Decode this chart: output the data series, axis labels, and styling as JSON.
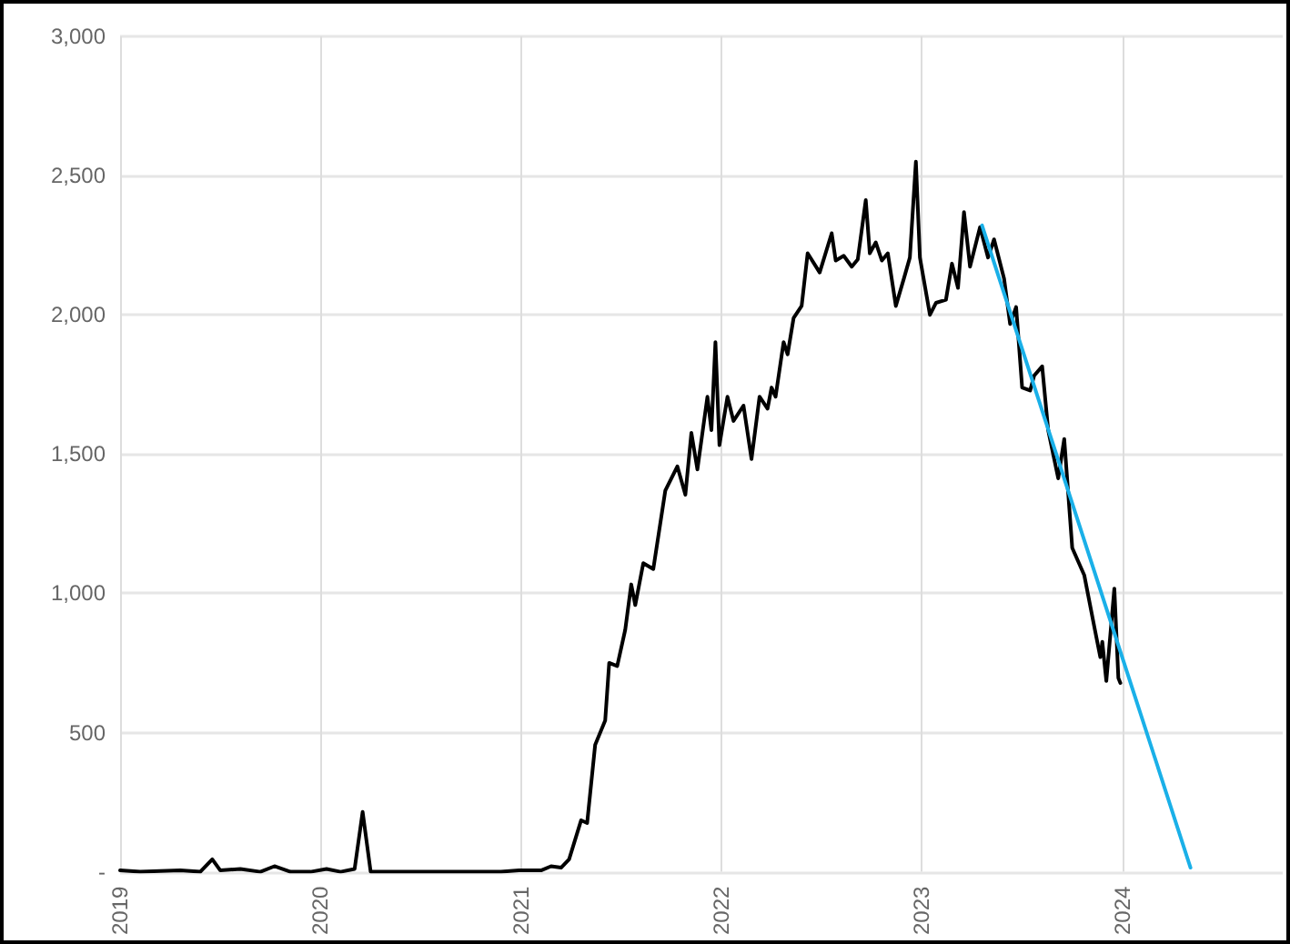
{
  "chart_data": {
    "type": "line",
    "xlim": [
      2019,
      2024.8
    ],
    "xticks": [
      2019,
      2020,
      2021,
      2022,
      2023,
      2024
    ],
    "ylim": [
      0,
      3000
    ],
    "yticks": [
      {
        "value": 0,
        "label": "-"
      },
      {
        "value": 500,
        "label": "500"
      },
      {
        "value": 1000,
        "label": "1,000"
      },
      {
        "value": 1500,
        "label": "1,500"
      },
      {
        "value": 2000,
        "label": "2,000"
      },
      {
        "value": 2500,
        "label": "2,500"
      },
      {
        "value": 3000,
        "label": "3,000"
      }
    ],
    "grid": true,
    "marker": "none",
    "line_style": "solid",
    "series": [
      {
        "color": "#000000",
        "x": [
          2019.0,
          2019.1,
          2019.3,
          2019.4,
          2019.46,
          2019.5,
          2019.6,
          2019.7,
          2019.77,
          2019.85,
          2019.95,
          2020.03,
          2020.1,
          2020.17,
          2020.21,
          2020.25,
          2020.9,
          2020.99,
          2021.1,
          2021.15,
          2021.2,
          2021.24,
          2021.3,
          2021.33,
          2021.37,
          2021.42,
          2021.44,
          2021.48,
          2021.52,
          2021.55,
          2021.57,
          2021.61,
          2021.66,
          2021.72,
          2021.78,
          2021.82,
          2021.85,
          2021.88,
          2021.93,
          2021.95,
          2021.97,
          2021.99,
          2022.03,
          2022.06,
          2022.11,
          2022.15,
          2022.19,
          2022.23,
          2022.25,
          2022.27,
          2022.31,
          2022.33,
          2022.36,
          2022.4,
          2022.43,
          2022.49,
          2022.55,
          2022.57,
          2022.61,
          2022.65,
          2022.68,
          2022.72,
          2022.74,
          2022.77,
          2022.8,
          2022.83,
          2022.87,
          2022.91,
          2022.94,
          2022.97,
          2022.99,
          2023.04,
          2023.07,
          2023.12,
          2023.15,
          2023.18,
          2023.21,
          2023.24,
          2023.29,
          2023.33,
          2023.36,
          2023.41,
          2023.44,
          2023.47,
          2023.5,
          2023.54,
          2023.56,
          2023.6,
          2023.63,
          2023.68,
          2023.71,
          2023.75,
          2023.81,
          2023.86,
          2023.89,
          2023.9,
          2023.92,
          2023.96,
          2023.98,
          2023.99
        ],
        "values": [
          5,
          0,
          5,
          0,
          45,
          5,
          10,
          0,
          20,
          0,
          0,
          10,
          0,
          10,
          215,
          0,
          0,
          5,
          5,
          20,
          15,
          45,
          185,
          175,
          456,
          543,
          750,
          739,
          869,
          1032,
          958,
          1108,
          1087,
          1369,
          1456,
          1354,
          1576,
          1445,
          1706,
          1586,
          1902,
          1532,
          1706,
          1619,
          1674,
          1482,
          1706,
          1663,
          1739,
          1706,
          1902,
          1858,
          1989,
          2032,
          2221,
          2152,
          2293,
          2195,
          2212,
          2173,
          2199,
          2412,
          2221,
          2260,
          2195,
          2221,
          2032,
          2130,
          2206,
          2550,
          2206,
          2000,
          2043,
          2054,
          2184,
          2097,
          2369,
          2173,
          2315,
          2206,
          2271,
          2130,
          1967,
          2028,
          1739,
          1728,
          1782,
          1815,
          1586,
          1413,
          1554,
          1163,
          1065,
          880,
          771,
          826,
          685,
          1017,
          696,
          678
        ]
      },
      {
        "color": "#1ab0e8",
        "x": [
          2023.3,
          2024.34
        ],
        "values": [
          2321,
          15
        ]
      }
    ]
  }
}
